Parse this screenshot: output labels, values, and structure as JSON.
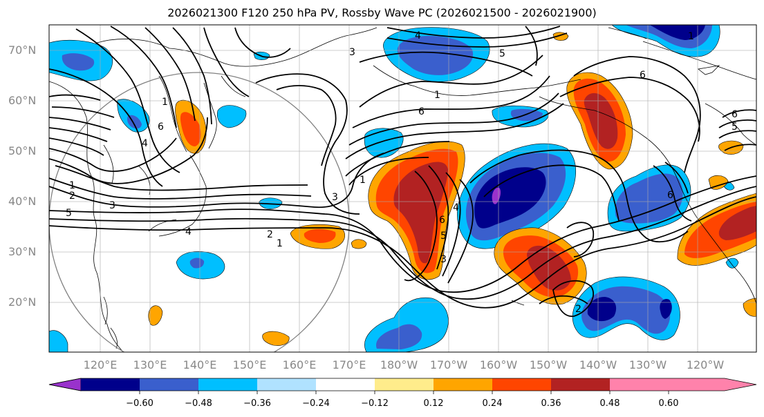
{
  "title": "2026021300 F120 250 hPa PV, Rossby Wave PC (2026021500 - 2026021900)",
  "lat_labels": [
    "70°N",
    "60°N",
    "50°N",
    "40°N",
    "30°N",
    "20°N"
  ],
  "lon_labels": [
    "120°E",
    "130°E",
    "140°E",
    "150°E",
    "160°E",
    "170°E",
    "180°W",
    "170°W",
    "160°W",
    "150°W",
    "140°W",
    "130°W",
    "120°W"
  ],
  "colorbar": {
    "ticks": [
      "−0.60",
      "−0.48",
      "−0.36",
      "−0.24",
      "−0.12",
      "0.12",
      "0.24",
      "0.36",
      "0.48",
      "0.60"
    ],
    "colors": [
      "#9932cc",
      "#00008b",
      "#3a5fcd",
      "#00bfff",
      "#b0e2ff",
      "#ffffff",
      "#ffec8b",
      "#ffa500",
      "#ff4500",
      "#b22222",
      "#ff82ab"
    ]
  },
  "contour_labels": [
    "1",
    "2",
    "3",
    "4",
    "5",
    "6"
  ]
}
